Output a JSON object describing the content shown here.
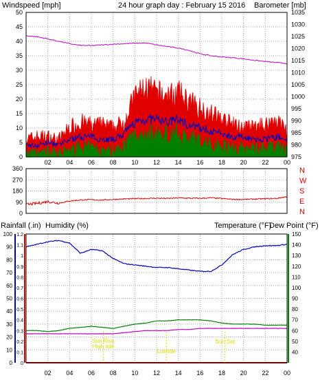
{
  "colors": {
    "wind": "#e00000",
    "wind_avg": "#0000c0",
    "wind_low": "#008000",
    "barometer": "#c000c0",
    "direction": "#e00000",
    "rainfall": "#e00000",
    "humidity": "#0000c0",
    "temperature": "#008000",
    "dew_point": "#c000c0",
    "events": "#e0e000",
    "grid": "#a8a8a8"
  },
  "x_ticks": [
    "02",
    "04",
    "06",
    "08",
    "10",
    "12",
    "14",
    "16",
    "18",
    "20",
    "22",
    "00"
  ],
  "chart_data": [
    {
      "type": "line",
      "title": "24 hour graph day : February 15 2016",
      "ylabel_left": "Windspeed [mph]",
      "ylabel_right": "Barometer [mb]",
      "ylim_left": [
        0,
        50
      ],
      "ylim_right": [
        975,
        1035
      ],
      "yticks_left": [
        "50",
        "45",
        "40",
        "35",
        "30",
        "25",
        "20",
        "15",
        "10",
        "5",
        "0"
      ],
      "yticks_right": [
        "1035",
        "1030",
        "1025",
        "1020",
        "1015",
        "1010",
        "1005",
        "1000",
        "995",
        "990",
        "985",
        "980",
        "975"
      ],
      "grid": true,
      "x": [
        0,
        1,
        2,
        3,
        4,
        5,
        6,
        7,
        8,
        9,
        10,
        11,
        12,
        13,
        14,
        15,
        16,
        17,
        18,
        19,
        20,
        21,
        22,
        23,
        24
      ],
      "series": [
        {
          "name": "Windspeed gust",
          "axis": "left",
          "values": [
            6,
            7,
            7,
            6,
            10,
            12,
            11,
            11,
            10,
            12,
            21,
            24,
            22,
            21,
            22,
            19,
            17,
            15,
            13,
            11,
            10,
            10,
            11,
            13,
            9
          ]
        },
        {
          "name": "Windspeed average",
          "axis": "left",
          "values": [
            4,
            4,
            5,
            4,
            6,
            7,
            7,
            6,
            6,
            8,
            12,
            13,
            13,
            12,
            13,
            11,
            10,
            9,
            8,
            7,
            7,
            6,
            6,
            7,
            6
          ]
        },
        {
          "name": "Windspeed low",
          "axis": "left",
          "values": [
            1,
            1,
            2,
            1,
            2,
            3,
            3,
            2,
            2,
            4,
            7,
            8,
            8,
            7,
            8,
            6,
            5,
            4,
            4,
            3,
            3,
            3,
            3,
            3,
            2
          ]
        },
        {
          "name": "Barometer",
          "axis": "right",
          "values": [
            1025.3,
            1024.9,
            1024.0,
            1023.0,
            1022.0,
            1021.3,
            1021.2,
            1021.5,
            1021.8,
            1022.0,
            1022.2,
            1022.3,
            1021.5,
            1020.8,
            1020.2,
            1019.2,
            1017.8,
            1017.0,
            1016.5,
            1016.2,
            1015.7,
            1015.1,
            1014.6,
            1014.2,
            1013.8
          ]
        }
      ]
    },
    {
      "type": "line",
      "ylabel_right": "N W S E N",
      "direction_labels": [
        "N",
        "W",
        "S",
        "E",
        "N"
      ],
      "ylim": [
        0,
        360
      ],
      "yticks": [
        "360",
        "270",
        "180",
        "90",
        "0"
      ],
      "grid": true,
      "x": [
        0,
        1,
        2,
        3,
        4,
        5,
        6,
        7,
        8,
        9,
        10,
        11,
        12,
        13,
        14,
        15,
        16,
        17,
        18,
        19,
        20,
        21,
        22,
        23,
        24
      ],
      "series": [
        {
          "name": "Wind direction",
          "values": [
            70,
            80,
            95,
            82,
            100,
            108,
            110,
            107,
            112,
            116,
            118,
            120,
            122,
            120,
            124,
            122,
            121,
            125,
            119,
            113,
            112,
            115,
            118,
            120,
            134
          ]
        }
      ]
    },
    {
      "type": "line",
      "ylabel_left": "Rainfall (.in)",
      "ylabel_center": "Humidity (%)",
      "ylabel_right": "Temperature (°F)",
      "ylabel_right2": "Dew Point (°F)",
      "ylim_humidity": [
        0,
        100
      ],
      "ylim_rain": [
        0,
        1.2
      ],
      "ylim_temperature": [
        30,
        150
      ],
      "yticks_humidity": [
        "100",
        "90",
        "80",
        "70",
        "60",
        "50",
        "40",
        "30",
        "20",
        "10",
        "0"
      ],
      "yticks_rain": [
        "1.2",
        "1.1",
        "1",
        "0.9",
        "0.8",
        "0.7",
        "0.6",
        "0.5",
        "0.4",
        "0.3",
        "0.2",
        "0.1",
        "0"
      ],
      "yticks_temperature": [
        "150",
        "140",
        "130",
        "120",
        "110",
        "100",
        "90",
        "80",
        "70",
        "60",
        "50",
        "40"
      ],
      "grid": true,
      "x": [
        0,
        1,
        2,
        3,
        4,
        5,
        6,
        7,
        8,
        9,
        10,
        11,
        12,
        13,
        14,
        15,
        16,
        17,
        18,
        19,
        20,
        21,
        22,
        23,
        24
      ],
      "series": [
        {
          "name": "Rainfall",
          "axis": "rain",
          "values": [
            0,
            0,
            0,
            0,
            0,
            0,
            0,
            0,
            0,
            0,
            0,
            0,
            0,
            0,
            0,
            0,
            0,
            0,
            0,
            0,
            0,
            0,
            0,
            0,
            0
          ]
        },
        {
          "name": "Humidity",
          "axis": "humidity",
          "values": [
            90,
            92,
            94,
            95,
            93,
            85,
            88,
            87,
            81,
            77,
            76,
            75,
            74,
            74,
            73,
            72,
            71,
            71,
            76,
            84,
            88,
            90,
            91,
            91,
            92
          ]
        },
        {
          "name": "Temperature",
          "axis": "temperature",
          "values": [
            60,
            60,
            59,
            60,
            62,
            63,
            64,
            63,
            62,
            64,
            66,
            67,
            69,
            69,
            70,
            70,
            70,
            69,
            67,
            66,
            66,
            66,
            65,
            65,
            65
          ]
        },
        {
          "name": "Dew Point",
          "axis": "temperature",
          "values": [
            57,
            57,
            57,
            57,
            57,
            57,
            57,
            57,
            57,
            58,
            59,
            60,
            60,
            60,
            61,
            61,
            62,
            62,
            62,
            62,
            62,
            62,
            62,
            62,
            62
          ]
        }
      ],
      "annotations": [
        {
          "hour": 7.1,
          "labels": [
            "Sun Rise",
            "High tide"
          ]
        },
        {
          "hour": 12.9,
          "labels": [
            "Lowtide"
          ]
        },
        {
          "hour": 18.3,
          "labels": [
            "Sun Set"
          ]
        }
      ]
    }
  ]
}
